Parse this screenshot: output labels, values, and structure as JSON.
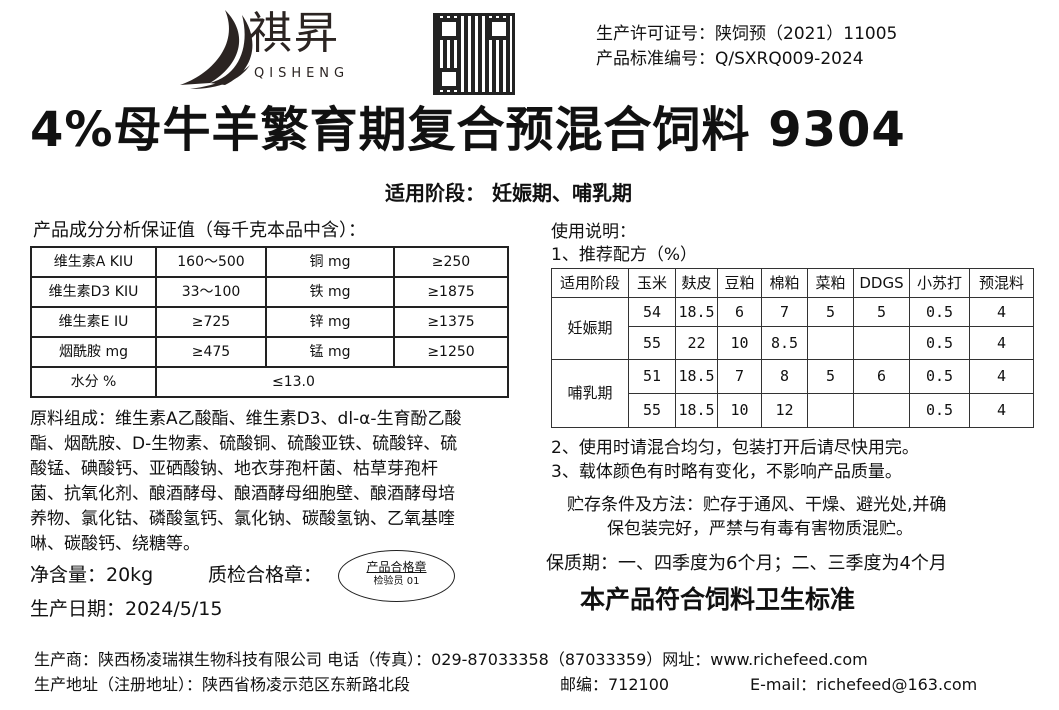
{
  "brand": {
    "name_cn": "祺昇",
    "name_en": "QISHENG"
  },
  "license": {
    "permit": "生产许可证号：陕饲预（2021）11005",
    "standard": "产品标准编号：Q/SXRQ009-2024"
  },
  "title": "4%母牛羊繁育期复合预混合饲料 9304",
  "stage_line": "适用阶段： 妊娠期、哺乳期",
  "analysis": {
    "heading": "产品成分分析保证值（每千克本品中含）：",
    "rows": [
      [
        "维生素A KIU",
        "160～500",
        "铜 mg",
        "≥250"
      ],
      [
        "维生素D3 KIU",
        "33～100",
        "铁 mg",
        "≥1875"
      ],
      [
        "维生素E IU",
        "≥725",
        "锌 mg",
        "≥1375"
      ],
      [
        "烟酰胺  mg",
        "≥475",
        "锰 mg",
        "≥1250"
      ]
    ],
    "moisture": [
      "水分 %",
      "≤13.0"
    ]
  },
  "ingredients": [
    "原料组成：维生素A乙酸酯、维生素D3、dl-α-生育酚乙酸",
    "酯、烟酰胺、D-生物素、硫酸铜、硫酸亚铁、硫酸锌、硫",
    "酸锰、碘酸钙、亚硒酸钠、地衣芽孢杆菌、枯草芽孢杆",
    "菌、抗氧化剂、酿酒酵母、酿酒酵母细胞壁、酿酒酵母培",
    "养物、氯化钴、磷酸氢钙、氯化钠、碳酸氢钠、乙氧基喹",
    "啉、碳酸钙、绕糖等。"
  ],
  "net_weight": "净含量：20kg",
  "qc_label": "质检合格章：",
  "stamp": {
    "title": "产品合格章",
    "inspector": "检验员 01"
  },
  "production_date": "生产日期：2024/5/15",
  "usage": {
    "heading": "使用说明：",
    "formula_heading": "1、推荐配方（%）",
    "columns": [
      "适用阶段",
      "玉米",
      "麸皮",
      "豆粕",
      "棉粕",
      "菜粕",
      "DDGS",
      "小苏打",
      "预混料"
    ],
    "groups": [
      {
        "stage": "妊娠期",
        "rows": [
          [
            "54",
            "18.5",
            "6",
            "7",
            "5",
            "5",
            "0.5",
            "4"
          ],
          [
            "55",
            "22",
            "10",
            "8.5",
            "",
            "",
            "0.5",
            "4"
          ]
        ]
      },
      {
        "stage": "哺乳期",
        "rows": [
          [
            "51",
            "18.5",
            "7",
            "8",
            "5",
            "6",
            "0.5",
            "4"
          ],
          [
            "55",
            "18.5",
            "10",
            "12",
            "",
            "",
            "0.5",
            "4"
          ]
        ]
      }
    ],
    "note2": "2、使用时请混合均匀，包装打开后请尽快用完。",
    "note3": "3、载体颜色有时略有变化，不影响产品质量。"
  },
  "storage": [
    "贮存条件及方法：贮存于通风、干燥、避光处,并确",
    "保包装完好，严禁与有毒有害物质混贮。"
  ],
  "shelf_life": "保质期：一、四季度为6个月；二、三季度为4个月",
  "hygiene": "本产品符合饲料卫生标准",
  "footer": {
    "line1": "生产商：陕西杨凌瑞祺生物科技有限公司     电话（传真）：029-87033358（87033359）网址：www.richefeed.com",
    "address": "生产地址（注册地址）：陕西省杨凌示范区东新路北段",
    "postcode": "邮编：712100",
    "email": "E-mail：richefeed@163.com"
  }
}
